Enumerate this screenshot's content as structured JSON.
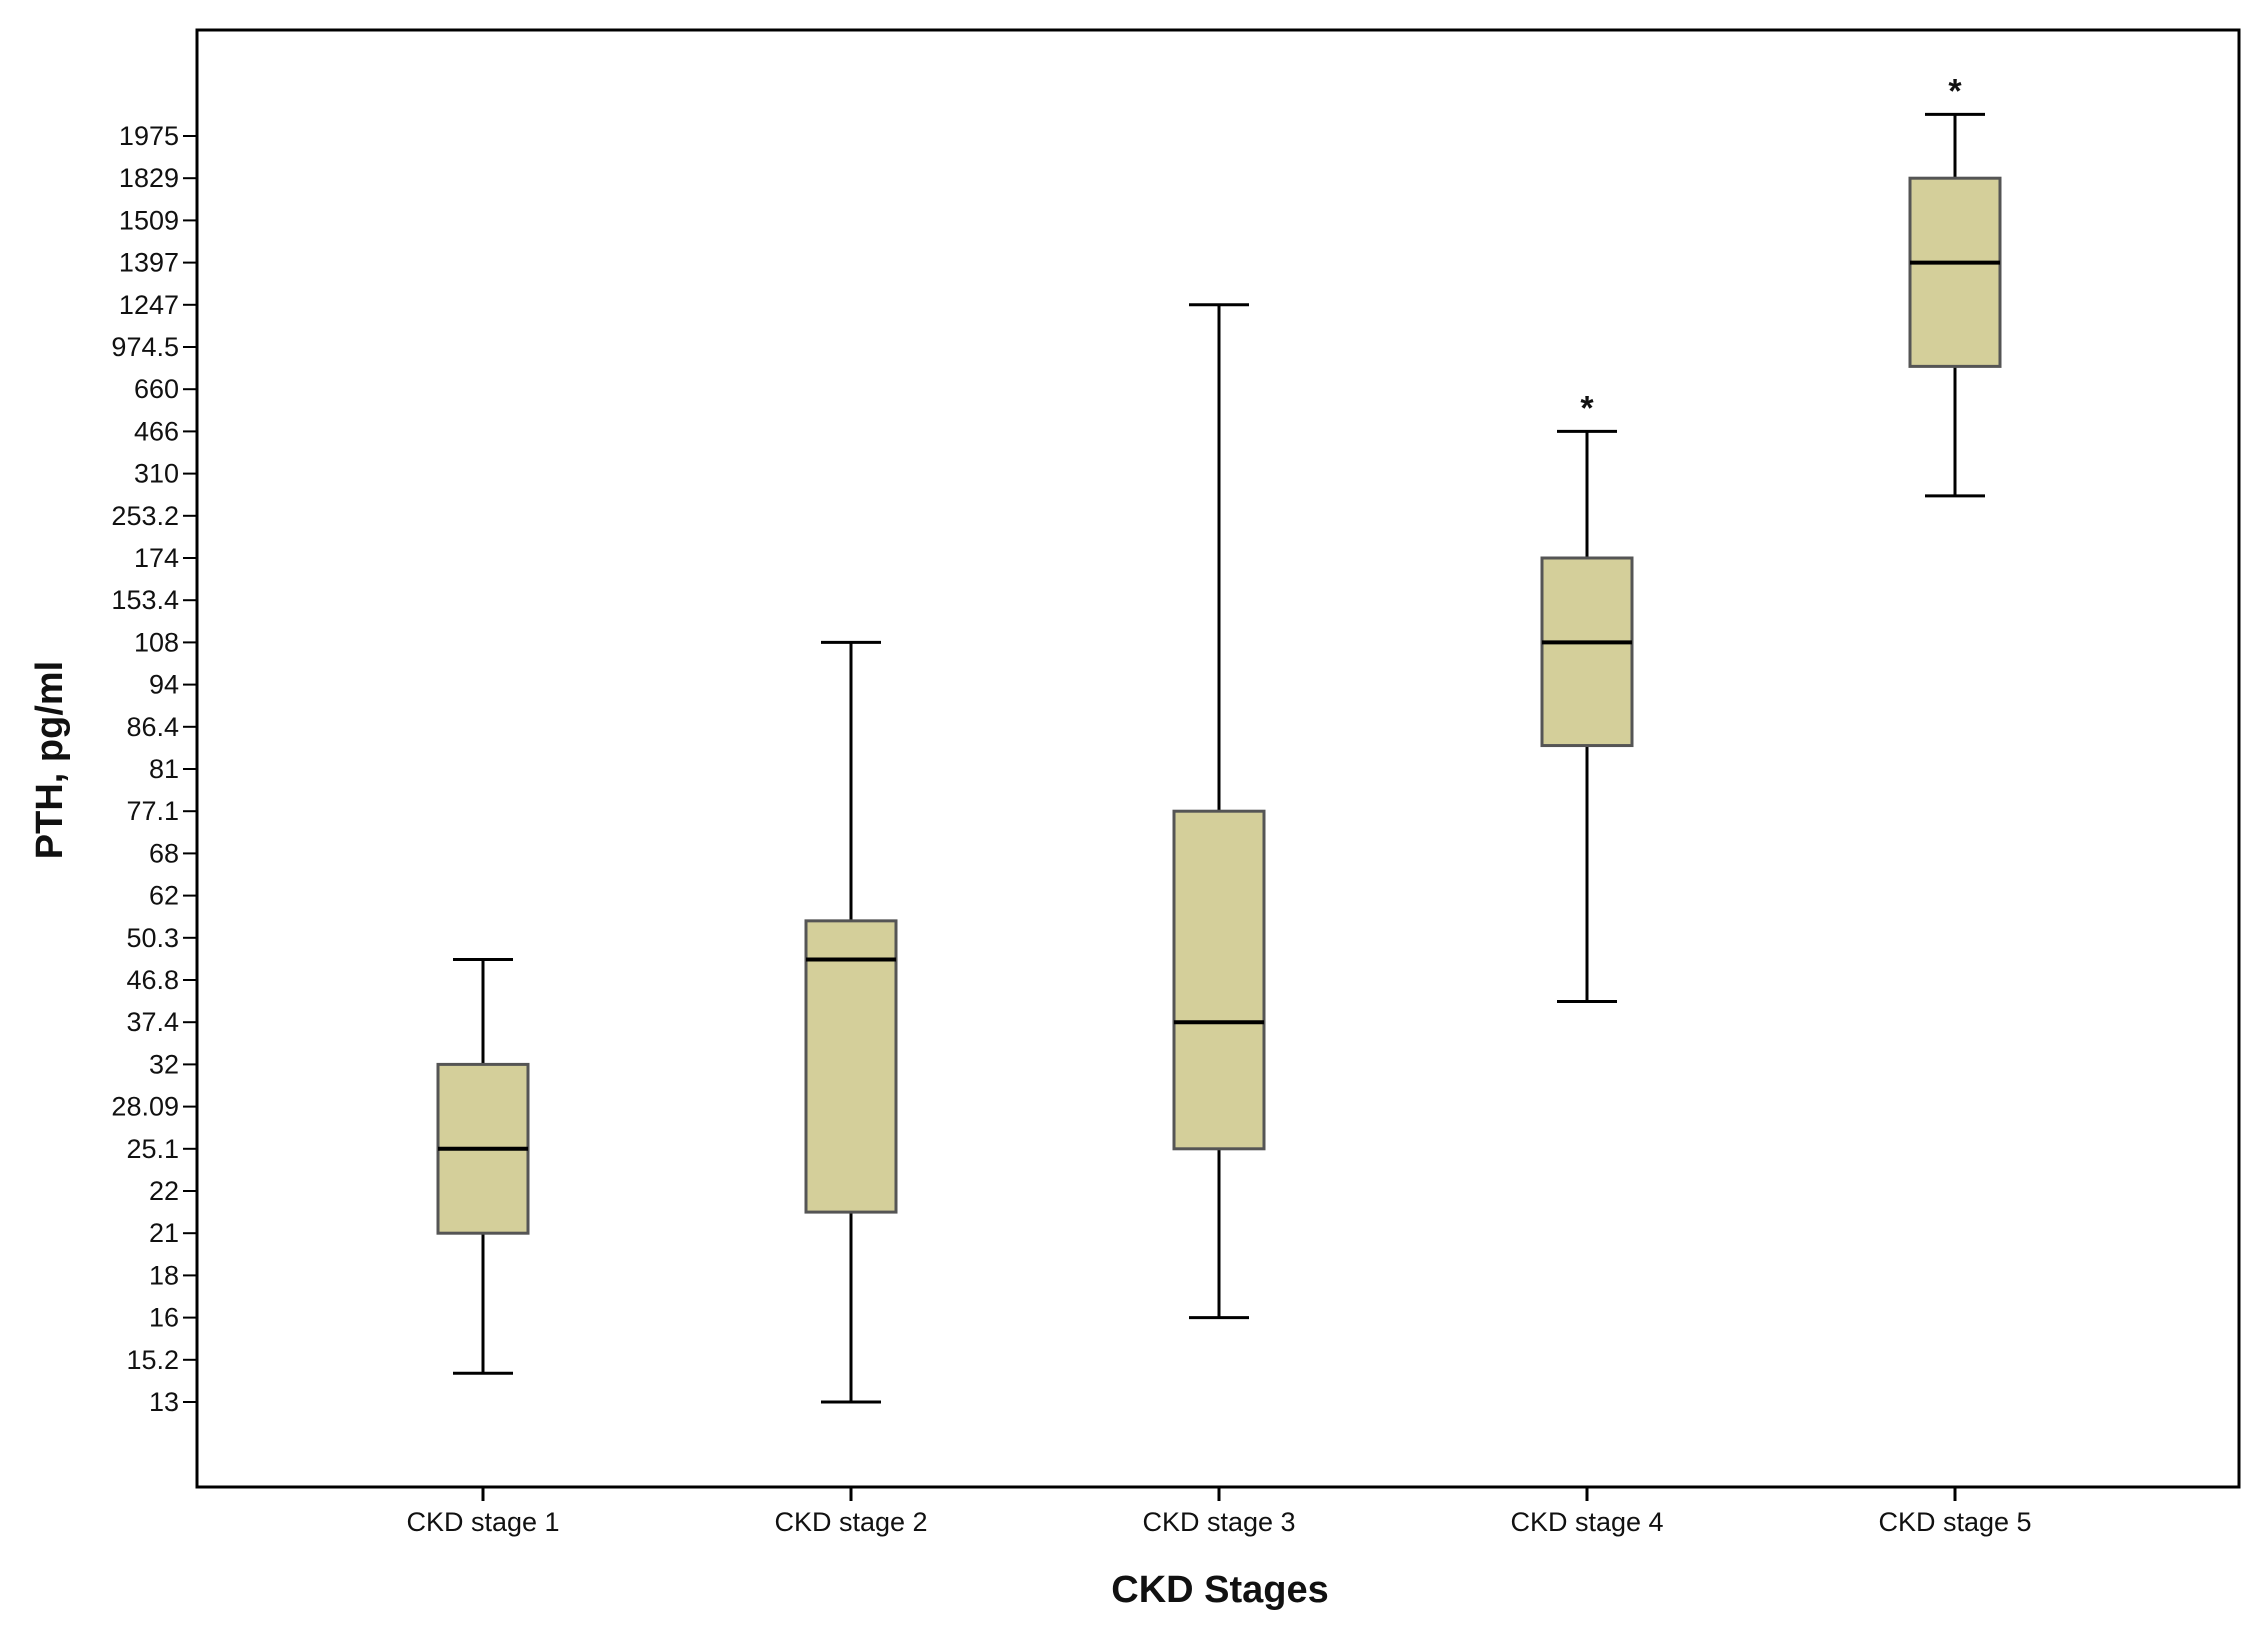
{
  "chart_data": {
    "type": "box",
    "title": "",
    "xlabel": "CKD Stages",
    "ylabel": "PTH, pg/ml",
    "colors": {
      "box_fill": "#d4cf9a",
      "box_edge": "#555555",
      "line": "#000000",
      "frame": "#000000"
    },
    "y_ticks": [
      "13",
      "15.2",
      "16",
      "18",
      "21",
      "22",
      "25.1",
      "28.09",
      "32",
      "37.4",
      "46.8",
      "50.3",
      "62",
      "68",
      "77.1",
      "81",
      "86.4",
      "94",
      "108",
      "153.4",
      "174",
      "253.2",
      "310",
      "466",
      "660",
      "974.5",
      "1247",
      "1397",
      "1509",
      "1829",
      "1975"
    ],
    "categories": [
      "CKD stage 1",
      "CKD stage 2",
      "CKD stage 3",
      "CKD stage 4",
      "CKD stage 5"
    ],
    "boxes": [
      {
        "min": 14.5,
        "q1": 21,
        "median": 25.1,
        "q3": 32,
        "max": 48.5,
        "outliers": []
      },
      {
        "min": 13,
        "q1": 21.5,
        "median": 48.5,
        "q3": 55,
        "max": 108,
        "outliers": []
      },
      {
        "min": 16,
        "q1": 25.1,
        "median": 37.4,
        "q3": 77.1,
        "max": 1247,
        "outliers": []
      },
      {
        "min": 42,
        "q1": 84,
        "median": 108,
        "q3": 174,
        "max": 466,
        "outliers": [
          480
        ]
      },
      {
        "min": 280,
        "q1": 830,
        "median": 1397,
        "q3": 1829,
        "max": 2050,
        "outliers": [
          2150
        ]
      }
    ],
    "outlier_marker": "*"
  }
}
